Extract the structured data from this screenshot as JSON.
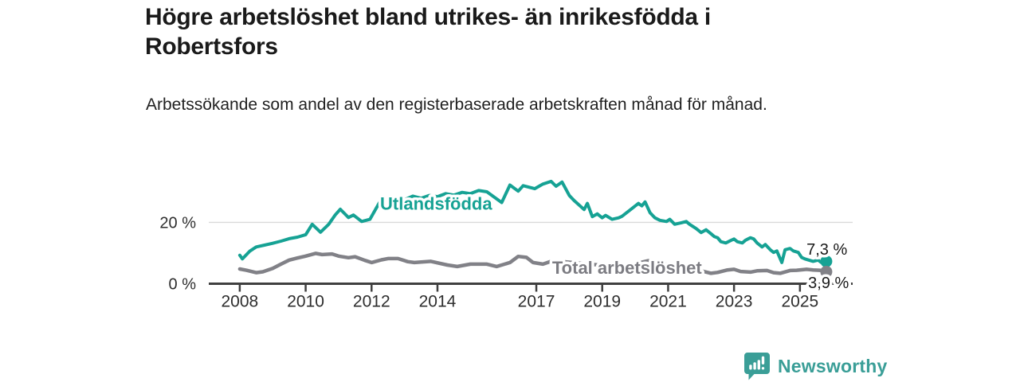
{
  "header": {
    "title": "Högre arbetslöshet bland utrikes- än inrikesfödda i Robertsfors",
    "subtitle": "Arbetssökande som andel av den registerbaserade arbetskraften månad för månad."
  },
  "footer": {
    "brand": "Newsworthy",
    "brand_color": "#3a9e97"
  },
  "colors": {
    "accent_teal": "#16a294",
    "series_gray": "#818187",
    "axis_dark": "#3f3f3f",
    "grid_light": "#d9d9d9",
    "text_dark": "#1a1a1a"
  },
  "chart_data": {
    "type": "line",
    "title": "Högre arbetslöshet bland utrikes- än inrikesfödda i Robertsfors",
    "subtitle": "Arbetssökande som andel av den registerbaserade arbetskraften månad för månad.",
    "unit": "%",
    "xlim": [
      2007.06,
      2026.6
    ],
    "ylim": [
      0,
      34.2
    ],
    "grid": "y-only",
    "x_ticks": [
      2008,
      2010,
      2012,
      2014,
      2017,
      2019,
      2021,
      2023,
      2025
    ],
    "y_ticks": [
      {
        "value": 0,
        "label": "0 %"
      },
      {
        "value": 20,
        "label": "20 %"
      }
    ],
    "series": [
      {
        "name": "Utlandsfödda",
        "color": "#16a294",
        "end_value": 7.3,
        "end_label": "7,3 %",
        "line_width": 4,
        "points": [
          [
            2008.0,
            9.3
          ],
          [
            2008.08,
            8.1
          ],
          [
            2008.3,
            10.6
          ],
          [
            2008.5,
            12.0
          ],
          [
            2008.75,
            12.6
          ],
          [
            2009.0,
            13.2
          ],
          [
            2009.25,
            13.9
          ],
          [
            2009.5,
            14.7
          ],
          [
            2009.75,
            15.2
          ],
          [
            2010.0,
            16.0
          ],
          [
            2010.2,
            19.4
          ],
          [
            2010.45,
            16.8
          ],
          [
            2010.7,
            19.4
          ],
          [
            2010.9,
            22.5
          ],
          [
            2011.05,
            24.3
          ],
          [
            2011.3,
            21.6
          ],
          [
            2011.45,
            22.4
          ],
          [
            2011.7,
            20.3
          ],
          [
            2011.95,
            21.0
          ],
          [
            2012.25,
            26.7
          ],
          [
            2012.5,
            27.5
          ],
          [
            2012.75,
            27.9
          ],
          [
            2013.0,
            27.4
          ],
          [
            2013.25,
            28.6
          ],
          [
            2013.5,
            27.9
          ],
          [
            2013.75,
            28.8
          ],
          [
            2014.0,
            28.4
          ],
          [
            2014.25,
            29.4
          ],
          [
            2014.5,
            28.9
          ],
          [
            2014.75,
            29.8
          ],
          [
            2015.0,
            29.4
          ],
          [
            2015.25,
            30.4
          ],
          [
            2015.5,
            30.0
          ],
          [
            2015.95,
            26.5
          ],
          [
            2016.2,
            32.2
          ],
          [
            2016.45,
            30.2
          ],
          [
            2016.6,
            32.0
          ],
          [
            2016.95,
            31.0
          ],
          [
            2017.2,
            32.5
          ],
          [
            2017.45,
            33.4
          ],
          [
            2017.6,
            31.8
          ],
          [
            2017.78,
            33.2
          ],
          [
            2018.0,
            28.8
          ],
          [
            2018.15,
            27.1
          ],
          [
            2018.45,
            24.2
          ],
          [
            2018.55,
            26.2
          ],
          [
            2018.7,
            21.9
          ],
          [
            2018.85,
            22.8
          ],
          [
            2019.0,
            21.5
          ],
          [
            2019.1,
            22.3
          ],
          [
            2019.3,
            21.0
          ],
          [
            2019.5,
            21.5
          ],
          [
            2019.6,
            22.0
          ],
          [
            2019.85,
            24.1
          ],
          [
            2020.1,
            26.2
          ],
          [
            2020.2,
            25.4
          ],
          [
            2020.3,
            26.7
          ],
          [
            2020.45,
            23.2
          ],
          [
            2020.6,
            21.5
          ],
          [
            2020.75,
            20.7
          ],
          [
            2020.95,
            20.3
          ],
          [
            2021.05,
            21.0
          ],
          [
            2021.2,
            19.4
          ],
          [
            2021.4,
            19.9
          ],
          [
            2021.55,
            20.3
          ],
          [
            2021.65,
            19.4
          ],
          [
            2021.85,
            18.0
          ],
          [
            2022.0,
            16.7
          ],
          [
            2022.15,
            17.6
          ],
          [
            2022.3,
            16.3
          ],
          [
            2022.4,
            15.4
          ],
          [
            2022.5,
            15.0
          ],
          [
            2022.6,
            13.7
          ],
          [
            2022.75,
            13.3
          ],
          [
            2022.9,
            14.1
          ],
          [
            2023.0,
            14.6
          ],
          [
            2023.1,
            13.7
          ],
          [
            2023.25,
            13.3
          ],
          [
            2023.35,
            14.2
          ],
          [
            2023.5,
            15.0
          ],
          [
            2023.6,
            14.6
          ],
          [
            2023.7,
            13.3
          ],
          [
            2023.85,
            12.0
          ],
          [
            2023.95,
            12.8
          ],
          [
            2024.1,
            11.1
          ],
          [
            2024.2,
            10.2
          ],
          [
            2024.3,
            10.7
          ],
          [
            2024.45,
            6.9
          ],
          [
            2024.55,
            11.1
          ],
          [
            2024.7,
            11.5
          ],
          [
            2024.8,
            10.7
          ],
          [
            2024.95,
            10.2
          ],
          [
            2025.05,
            8.6
          ],
          [
            2025.15,
            8.1
          ],
          [
            2025.3,
            7.6
          ],
          [
            2025.4,
            7.3
          ],
          [
            2025.55,
            7.7
          ],
          [
            2025.65,
            6.9
          ],
          [
            2025.8,
            7.3
          ]
        ]
      },
      {
        "name": "Total arbetslöshet",
        "color": "#818187",
        "end_value": 3.9,
        "end_label": "3,9 %",
        "line_width": 4.5,
        "points": [
          [
            2008.0,
            4.8
          ],
          [
            2008.2,
            4.4
          ],
          [
            2008.5,
            3.6
          ],
          [
            2008.7,
            3.9
          ],
          [
            2009.0,
            5.0
          ],
          [
            2009.25,
            6.4
          ],
          [
            2009.5,
            7.7
          ],
          [
            2009.75,
            8.4
          ],
          [
            2010.0,
            9.0
          ],
          [
            2010.3,
            9.9
          ],
          [
            2010.5,
            9.5
          ],
          [
            2010.8,
            9.7
          ],
          [
            2011.0,
            9.0
          ],
          [
            2011.3,
            8.5
          ],
          [
            2011.5,
            8.8
          ],
          [
            2011.8,
            7.6
          ],
          [
            2012.0,
            6.9
          ],
          [
            2012.3,
            7.8
          ],
          [
            2012.5,
            8.2
          ],
          [
            2012.8,
            8.2
          ],
          [
            2013.1,
            7.2
          ],
          [
            2013.3,
            6.9
          ],
          [
            2013.8,
            7.3
          ],
          [
            2014.3,
            6.1
          ],
          [
            2014.6,
            5.6
          ],
          [
            2015.0,
            6.4
          ],
          [
            2015.5,
            6.4
          ],
          [
            2015.8,
            5.6
          ],
          [
            2016.2,
            6.9
          ],
          [
            2016.45,
            8.9
          ],
          [
            2016.7,
            8.6
          ],
          [
            2016.9,
            6.9
          ],
          [
            2017.2,
            6.4
          ],
          [
            2017.5,
            7.5
          ],
          [
            2018.0,
            7.0
          ],
          [
            2018.5,
            6.5
          ],
          [
            2019.0,
            6.0
          ],
          [
            2019.5,
            5.8
          ],
          [
            2020.0,
            6.5
          ],
          [
            2020.4,
            7.5
          ],
          [
            2021.0,
            6.2
          ],
          [
            2021.5,
            5.2
          ],
          [
            2022.0,
            4.2
          ],
          [
            2022.3,
            3.4
          ],
          [
            2022.5,
            3.7
          ],
          [
            2022.8,
            4.5
          ],
          [
            2023.0,
            4.7
          ],
          [
            2023.2,
            4.0
          ],
          [
            2023.5,
            3.8
          ],
          [
            2023.7,
            4.2
          ],
          [
            2024.0,
            4.3
          ],
          [
            2024.2,
            3.6
          ],
          [
            2024.4,
            3.4
          ],
          [
            2024.7,
            4.3
          ],
          [
            2024.9,
            4.4
          ],
          [
            2025.2,
            4.7
          ],
          [
            2025.4,
            4.5
          ],
          [
            2025.6,
            4.4
          ],
          [
            2025.8,
            3.9
          ]
        ]
      }
    ],
    "annotations": [
      {
        "text": "Utlandsfödda",
        "x": 2012.26,
        "y": 26.1,
        "color": "#16a294",
        "bold": true,
        "size": 22,
        "halo": true
      },
      {
        "text": "Total arbetslöshet",
        "x": 2017.48,
        "y": 5.3,
        "color": "#7c7c82",
        "bold": true,
        "size": 22,
        "halo": true
      },
      {
        "text": "7,3 %",
        "x": 2025.2,
        "y": 11.3,
        "color": "#1a1a1a",
        "bold": false,
        "size": 20,
        "halo": true
      },
      {
        "text": "3,9 %",
        "x": 2025.25,
        "y": 0.4,
        "color": "#1a1a1a",
        "bold": false,
        "size": 20,
        "halo": true
      }
    ],
    "legend_position": "inline-labels"
  }
}
